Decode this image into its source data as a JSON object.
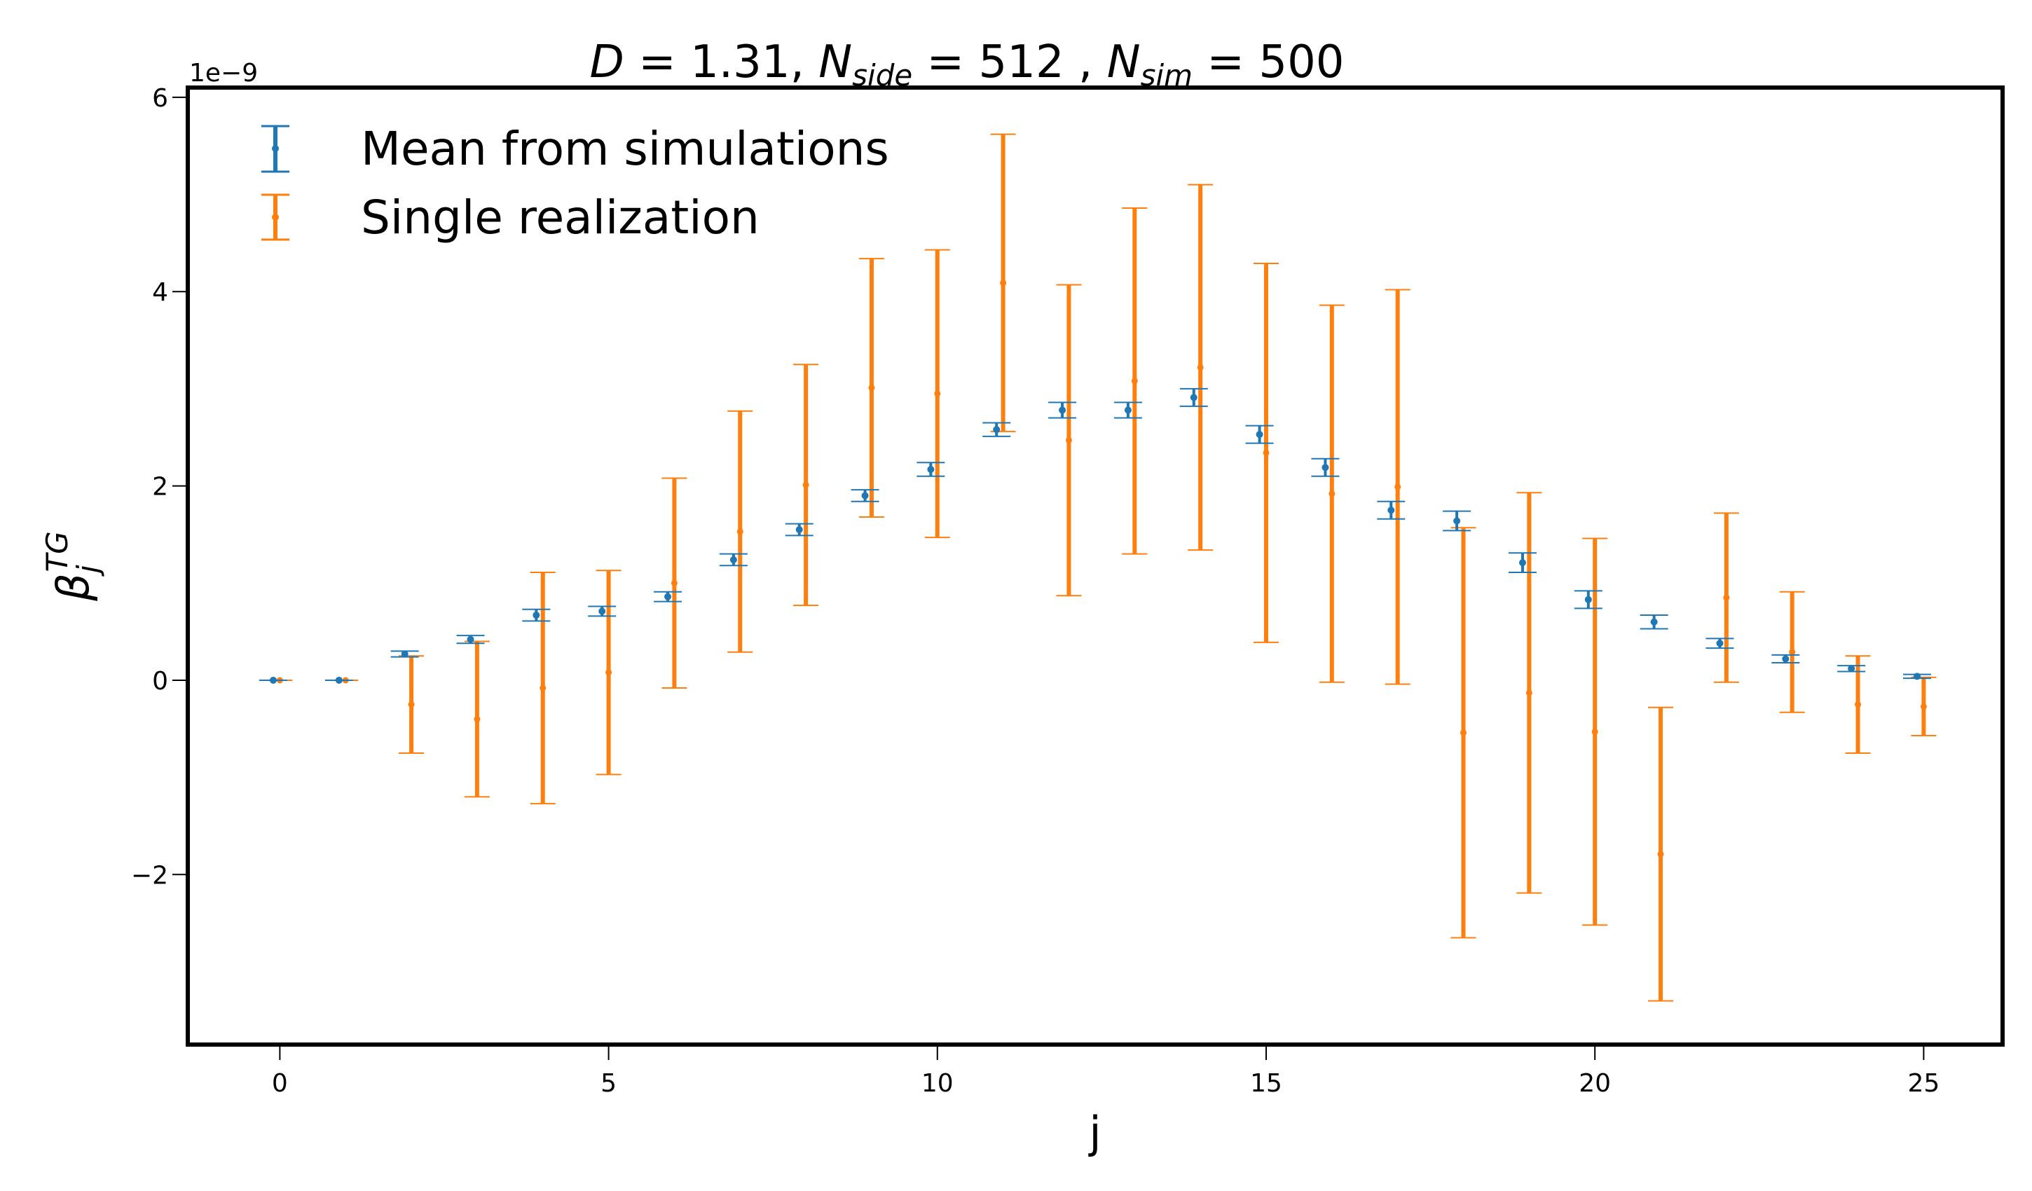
{
  "chart_data": {
    "type": "scatter",
    "title": {
      "d_symbol": "D",
      "d_value": "1.31",
      "nside_symbol": "N",
      "nside_sub": "side",
      "nside_value": "512",
      "nsim_symbol": "N",
      "nsim_sub": "sim",
      "nsim_value": "500"
    },
    "xlabel": "j",
    "ylabel": {
      "symbol": "β",
      "sub": "j",
      "sup": "TG"
    },
    "y_offset_text": "1e−9",
    "xlim": [
      -1.4,
      26.2
    ],
    "ylim": [
      -3.75,
      6.1
    ],
    "x_ticks": [
      {
        "value": 0,
        "label": "0"
      },
      {
        "value": 5,
        "label": "5"
      },
      {
        "value": 10,
        "label": "10"
      },
      {
        "value": 15,
        "label": "15"
      },
      {
        "value": 20,
        "label": "20"
      },
      {
        "value": 25,
        "label": "25"
      }
    ],
    "y_ticks": [
      {
        "value": -2,
        "label": "−2"
      },
      {
        "value": 0,
        "label": "0"
      },
      {
        "value": 2,
        "label": "2"
      },
      {
        "value": 4,
        "label": "4"
      },
      {
        "value": 6,
        "label": "6"
      }
    ],
    "legend_position": "top-left",
    "series": [
      {
        "name": "Mean from simulations",
        "color": "#1f77b4",
        "x_offset": -0.1,
        "points": [
          {
            "x": 0,
            "y": 0.0,
            "err": 0.0
          },
          {
            "x": 1,
            "y": 0.0,
            "err": 0.0
          },
          {
            "x": 2,
            "y": 0.27,
            "err": 0.03
          },
          {
            "x": 3,
            "y": 0.42,
            "err": 0.04
          },
          {
            "x": 4,
            "y": 0.67,
            "err": 0.06
          },
          {
            "x": 5,
            "y": 0.71,
            "err": 0.05
          },
          {
            "x": 6,
            "y": 0.86,
            "err": 0.05
          },
          {
            "x": 7,
            "y": 1.24,
            "err": 0.06
          },
          {
            "x": 8,
            "y": 1.55,
            "err": 0.06
          },
          {
            "x": 9,
            "y": 1.9,
            "err": 0.06
          },
          {
            "x": 10,
            "y": 2.17,
            "err": 0.07
          },
          {
            "x": 11,
            "y": 2.58,
            "err": 0.07
          },
          {
            "x": 12,
            "y": 2.78,
            "err": 0.08
          },
          {
            "x": 13,
            "y": 2.78,
            "err": 0.08
          },
          {
            "x": 14,
            "y": 2.91,
            "err": 0.09
          },
          {
            "x": 15,
            "y": 2.53,
            "err": 0.09
          },
          {
            "x": 16,
            "y": 2.19,
            "err": 0.09
          },
          {
            "x": 17,
            "y": 1.75,
            "err": 0.09
          },
          {
            "x": 18,
            "y": 1.64,
            "err": 0.1
          },
          {
            "x": 19,
            "y": 1.21,
            "err": 0.1
          },
          {
            "x": 20,
            "y": 0.83,
            "err": 0.09
          },
          {
            "x": 21,
            "y": 0.6,
            "err": 0.07
          },
          {
            "x": 22,
            "y": 0.38,
            "err": 0.05
          },
          {
            "x": 23,
            "y": 0.22,
            "err": 0.04
          },
          {
            "x": 24,
            "y": 0.12,
            "err": 0.03
          },
          {
            "x": 25,
            "y": 0.04,
            "err": 0.02
          }
        ]
      },
      {
        "name": "Single realization",
        "color": "#ff7f0e",
        "x_offset": 0.0,
        "points": [
          {
            "x": 0,
            "y": 0.0,
            "err": 0.0
          },
          {
            "x": 1,
            "y": 0.0,
            "err": 0.0
          },
          {
            "x": 2,
            "y": -0.25,
            "err": 0.5
          },
          {
            "x": 3,
            "y": -0.4,
            "err": 0.8
          },
          {
            "x": 4,
            "y": -0.08,
            "err": 1.19
          },
          {
            "x": 5,
            "y": 0.08,
            "err": 1.05
          },
          {
            "x": 6,
            "y": 1.0,
            "err": 1.08
          },
          {
            "x": 7,
            "y": 1.53,
            "err": 1.24
          },
          {
            "x": 8,
            "y": 2.01,
            "err": 1.24
          },
          {
            "x": 9,
            "y": 3.01,
            "err": 1.33
          },
          {
            "x": 10,
            "y": 2.95,
            "err": 1.48
          },
          {
            "x": 11,
            "y": 4.09,
            "err": 1.53
          },
          {
            "x": 12,
            "y": 2.47,
            "err": 1.6
          },
          {
            "x": 13,
            "y": 3.08,
            "err": 1.78
          },
          {
            "x": 14,
            "y": 3.22,
            "err": 1.88
          },
          {
            "x": 15,
            "y": 2.34,
            "err": 1.95
          },
          {
            "x": 16,
            "y": 1.92,
            "err": 1.94
          },
          {
            "x": 17,
            "y": 1.99,
            "err": 2.03
          },
          {
            "x": 18,
            "y": -0.54,
            "err": 2.11
          },
          {
            "x": 19,
            "y": -0.13,
            "err": 2.06
          },
          {
            "x": 20,
            "y": -0.53,
            "err": 1.99
          },
          {
            "x": 21,
            "y": -1.79,
            "err": 1.51
          },
          {
            "x": 22,
            "y": 0.85,
            "err": 0.87
          },
          {
            "x": 23,
            "y": 0.29,
            "err": 0.62
          },
          {
            "x": 24,
            "y": -0.25,
            "err": 0.5
          },
          {
            "x": 25,
            "y": -0.27,
            "err": 0.3
          }
        ]
      }
    ]
  }
}
